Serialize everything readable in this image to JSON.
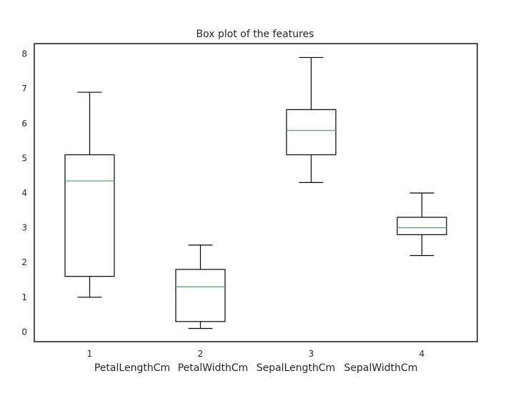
{
  "chart_data": {
    "type": "box",
    "title": "Box plot of the features",
    "xlabel": "",
    "ylabel": "",
    "x_tick_labels": [
      "1",
      "2",
      "3",
      "4"
    ],
    "y_ticks": [
      0,
      1,
      2,
      3,
      4,
      5,
      6,
      7,
      8
    ],
    "ylim": [
      -0.28,
      8.3
    ],
    "grid": false,
    "categories": [
      "PetalLengthCm",
      "PetalWidthCm",
      "SepalLengthCm",
      "SepalWidthCm"
    ],
    "boxes": [
      {
        "whisker_low": 1.0,
        "q1": 1.6,
        "median": 4.35,
        "q3": 5.1,
        "whisker_high": 6.9
      },
      {
        "whisker_low": 0.1,
        "q1": 0.3,
        "median": 1.3,
        "q3": 1.8,
        "whisker_high": 2.5
      },
      {
        "whisker_low": 4.3,
        "q1": 5.1,
        "median": 5.8,
        "q3": 6.4,
        "whisker_high": 7.9
      },
      {
        "whisker_low": 2.2,
        "q1": 2.8,
        "median": 3.0,
        "q3": 3.3,
        "whisker_high": 4.0
      }
    ],
    "colors": {
      "box": "#000000",
      "median": "#55a868",
      "frame": "#262626"
    }
  }
}
